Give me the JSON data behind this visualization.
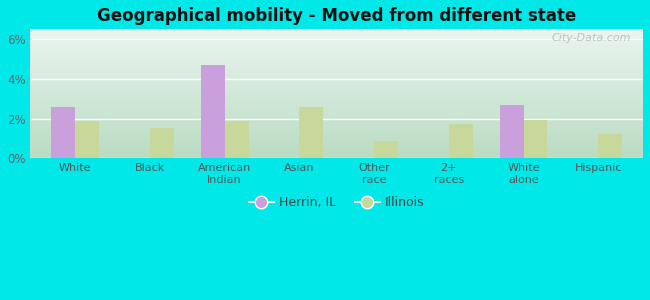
{
  "title": "Geographical mobility - Moved from different state",
  "categories": [
    "White",
    "Black",
    "American\nIndian",
    "Asian",
    "Other\nrace",
    "2+\nraces",
    "White\nalone",
    "Hispanic"
  ],
  "herrin_values": [
    2.6,
    0,
    4.7,
    0,
    0,
    0,
    2.7,
    0
  ],
  "illinois_values": [
    1.9,
    1.55,
    1.9,
    2.6,
    0.9,
    1.75,
    1.95,
    1.25
  ],
  "herrin_color": "#c9a0dc",
  "illinois_color": "#c8d89a",
  "background_outer": "#00e8e8",
  "ylim": [
    0,
    6.5
  ],
  "yticks": [
    0,
    2,
    4,
    6
  ],
  "ytick_labels": [
    "0%",
    "2%",
    "4%",
    "6%"
  ],
  "legend_herrin": "Herrin, IL",
  "legend_illinois": "Illinois",
  "bar_width": 0.32,
  "watermark": "City-Data.com"
}
